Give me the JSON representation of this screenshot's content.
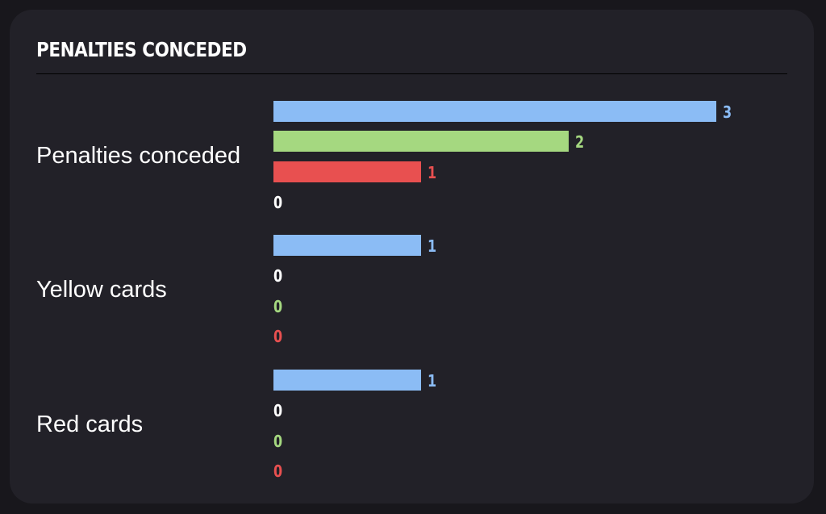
{
  "chart_data": {
    "type": "bar",
    "orientation": "horizontal",
    "title": "PENALTIES CONCEDED",
    "categories": [
      "Penalties conceded",
      "Yellow cards",
      "Red cards"
    ],
    "series": [
      {
        "color": "#8bbcf5",
        "values": [
          3,
          1,
          1
        ]
      },
      {
        "color": "#ffffff",
        "values": [
          0,
          0,
          0
        ]
      },
      {
        "color": "#a5d880",
        "values": [
          2,
          0,
          0
        ]
      },
      {
        "color": "#e85050",
        "values": [
          1,
          0,
          0
        ]
      }
    ],
    "bars_by_category": [
      [
        {
          "series": 0,
          "value": 3
        },
        {
          "series": 2,
          "value": 2
        },
        {
          "series": 3,
          "value": 1
        },
        {
          "series": 1,
          "value": 0
        }
      ],
      [
        {
          "series": 0,
          "value": 1
        },
        {
          "series": 1,
          "value": 0
        },
        {
          "series": 2,
          "value": 0
        },
        {
          "series": 3,
          "value": 0
        }
      ],
      [
        {
          "series": 0,
          "value": 1
        },
        {
          "series": 1,
          "value": 0
        },
        {
          "series": 2,
          "value": 0
        },
        {
          "series": 3,
          "value": 0
        }
      ]
    ],
    "xlim": [
      0,
      3
    ],
    "grid": false,
    "legend": "none"
  },
  "colors": {
    "page_background": "#18171c",
    "card_background": "#222128",
    "divider": "#000000",
    "text": "#ffffff"
  }
}
